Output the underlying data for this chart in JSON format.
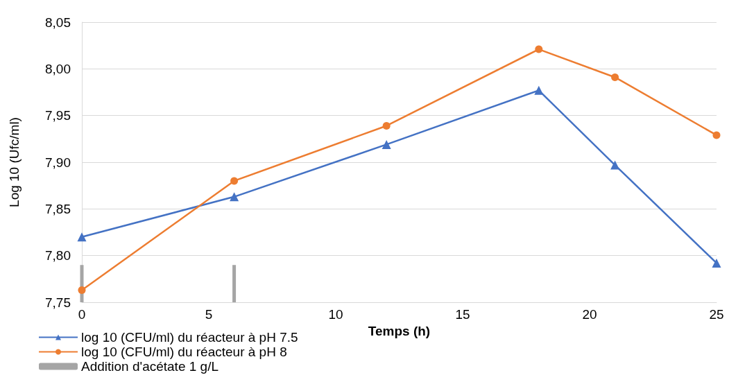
{
  "chart_data": {
    "type": "line",
    "xlabel": "Temps (h)",
    "ylabel": "Log 10 (Ufc/ml)",
    "xlim": [
      0,
      25
    ],
    "xticks": [
      0,
      5,
      10,
      15,
      20,
      25
    ],
    "ylim": [
      7.75,
      8.05
    ],
    "yticks": [
      {
        "value": 7.75,
        "label": "7,75"
      },
      {
        "value": 7.8,
        "label": "7,80"
      },
      {
        "value": 7.85,
        "label": "7,85"
      },
      {
        "value": 7.9,
        "label": "7,90"
      },
      {
        "value": 7.95,
        "label": "7,95"
      },
      {
        "value": 8.0,
        "label": "8,00"
      },
      {
        "value": 8.05,
        "label": "8,05"
      }
    ],
    "grid": "y",
    "legend": "bottom left",
    "line_style": "solid",
    "series": [
      {
        "name": "log 10 (CFU/ml) du réacteur à pH 7.5",
        "color": "#4472c4",
        "marker": "triangle",
        "x": [
          0,
          6,
          12,
          18,
          21,
          25
        ],
        "values": [
          7.82,
          7.863,
          7.919,
          7.977,
          7.897,
          7.792
        ]
      },
      {
        "name": "log 10 (CFU/ml) du réacteur à pH 8",
        "color": "#ed7d31",
        "marker": "circle",
        "x": [
          0,
          6,
          12,
          18,
          21,
          25
        ],
        "values": [
          7.763,
          7.88,
          7.939,
          8.021,
          7.991,
          7.929
        ]
      },
      {
        "name": "Addition d'acétate 1 g/L",
        "color": "#a5a5a5",
        "marker": "none",
        "x": [
          0,
          0,
          null,
          6,
          6
        ],
        "values": [
          7.75,
          7.79,
          null,
          7.75,
          7.79
        ]
      }
    ]
  }
}
